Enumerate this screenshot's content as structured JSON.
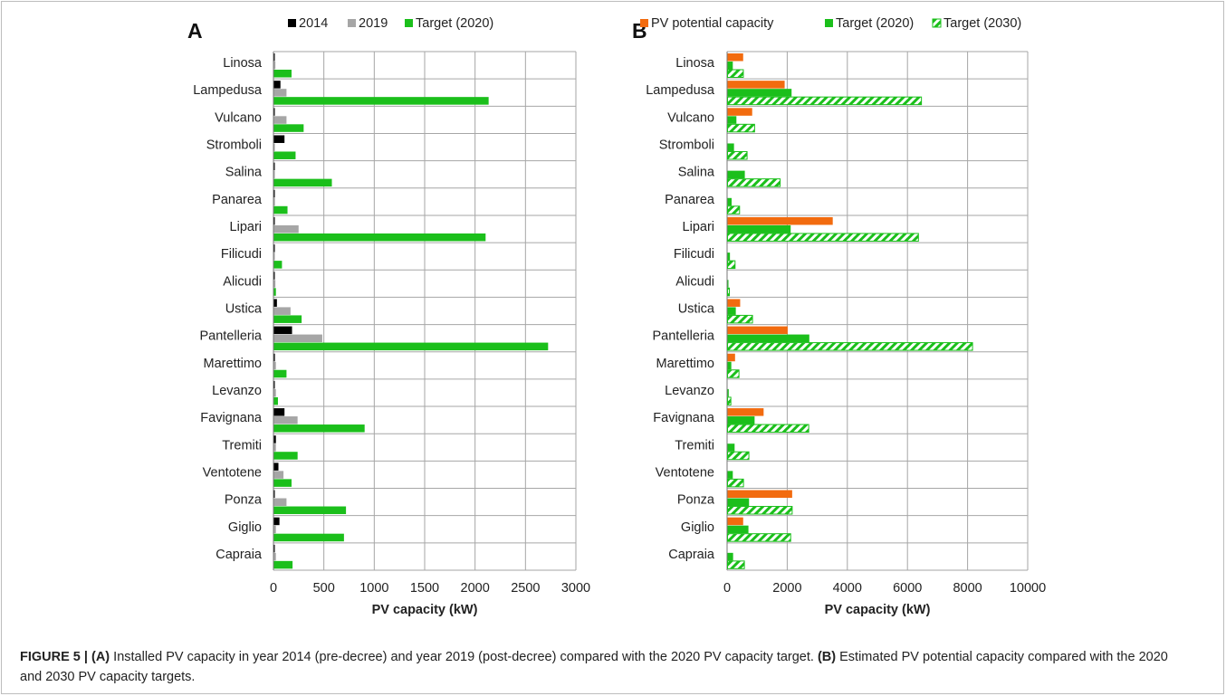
{
  "colors": {
    "c2014": "#000000",
    "c2019": "#a6a6a6",
    "green": "#1bbf1b",
    "orange": "#f26b0f",
    "hatch": "#1bbf1b",
    "grid": "#a6a6a6"
  },
  "caption": {
    "lead": "FIGURE 5 | ",
    "a_tag": "(A)",
    "a_text": " Installed PV capacity in year 2014 (pre-decree) and year 2019 (post-decree) compared with the 2020 PV capacity target. ",
    "b_tag": "(B)",
    "b_text": " Estimated PV potential capacity compared with the 2020 and 2030 PV capacity targets."
  },
  "chart_data": [
    {
      "panel": "A",
      "type": "bar",
      "orientation": "horizontal",
      "xlabel": "PV capacity (kW)",
      "xlim": [
        0,
        3000
      ],
      "xticks": [
        0,
        500,
        1000,
        1500,
        2000,
        2500,
        3000
      ],
      "grid": true,
      "legend_position": "top",
      "categories": [
        "Linosa",
        "Lampedusa",
        "Vulcano",
        "Stromboli",
        "Salina",
        "Panarea",
        "Lipari",
        "Filicudi",
        "Alicudi",
        "Ustica",
        "Pantelleria",
        "Marettimo",
        "Levanzo",
        "Favignana",
        "Tremiti",
        "Ventotene",
        "Ponza",
        "Giglio",
        "Capraia"
      ],
      "series": [
        {
          "name": "2014",
          "color": "#000000",
          "values": [
            8,
            65,
            5,
            105,
            3,
            5,
            5,
            3,
            8,
            30,
            180,
            10,
            8,
            105,
            20,
            45,
            5,
            55,
            5
          ]
        },
        {
          "name": "2019",
          "color": "#a6a6a6",
          "values": [
            15,
            125,
            125,
            5,
            5,
            10,
            245,
            5,
            15,
            165,
            480,
            20,
            20,
            235,
            20,
            95,
            125,
            20,
            20
          ]
        },
        {
          "name": "Target (2020)",
          "color": "#1bbf1b",
          "values": [
            175,
            2130,
            295,
            215,
            575,
            135,
            2100,
            80,
            20,
            275,
            2720,
            125,
            40,
            900,
            235,
            175,
            715,
            695,
            185
          ]
        }
      ]
    },
    {
      "panel": "B",
      "type": "bar",
      "orientation": "horizontal",
      "xlabel": "PV capacity (kW)",
      "xlim": [
        0,
        10000
      ],
      "xticks": [
        0,
        2000,
        4000,
        6000,
        8000,
        10000
      ],
      "grid": true,
      "legend_position": "top",
      "categories": [
        "Linosa",
        "Lampedusa",
        "Vulcano",
        "Stromboli",
        "Salina",
        "Panarea",
        "Lipari",
        "Filicudi",
        "Alicudi",
        "Ustica",
        "Pantelleria",
        "Marettimo",
        "Levanzo",
        "Favignana",
        "Tremiti",
        "Ventotene",
        "Ponza",
        "Giglio",
        "Capraia"
      ],
      "series": [
        {
          "name": "PV potential capacity",
          "color": "#f26b0f",
          "values": [
            520,
            1900,
            820,
            0,
            0,
            0,
            3500,
            0,
            0,
            420,
            2000,
            250,
            0,
            1200,
            0,
            0,
            2150,
            520,
            0
          ]
        },
        {
          "name": "Target (2020)",
          "color": "#1bbf1b",
          "values": [
            175,
            2130,
            295,
            215,
            575,
            135,
            2100,
            80,
            20,
            275,
            2720,
            125,
            40,
            900,
            235,
            175,
            715,
            695,
            185
          ]
        },
        {
          "name": "Target (2030)",
          "color": "#1bbf1b",
          "pattern": "hatch",
          "values": [
            525,
            6450,
            900,
            650,
            1750,
            400,
            6350,
            250,
            60,
            830,
            8150,
            380,
            110,
            2700,
            710,
            530,
            2150,
            2100,
            560
          ]
        }
      ]
    }
  ]
}
